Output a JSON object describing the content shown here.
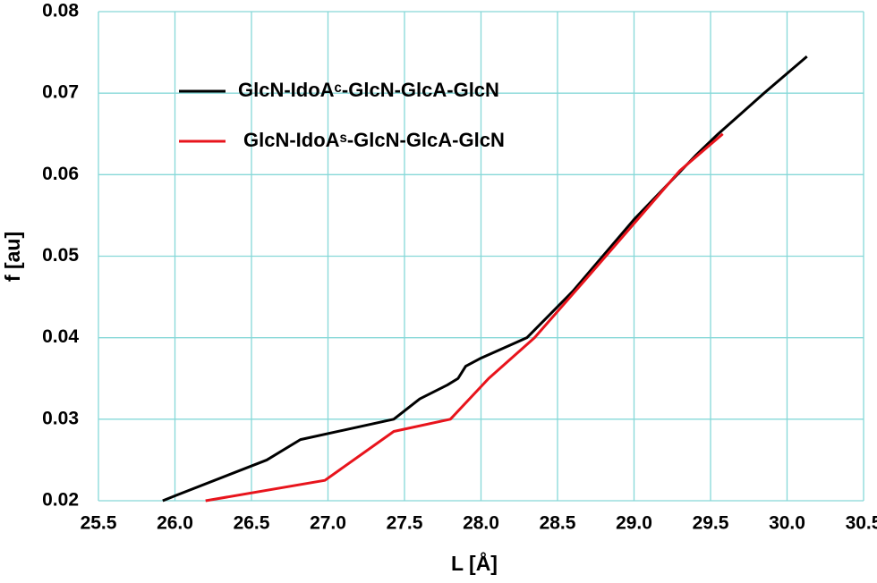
{
  "chart_data": {
    "type": "line",
    "xlabel": "L [Å]",
    "ylabel": "f [au]",
    "xlim": [
      25.5,
      30.5
    ],
    "xticks": [
      25.5,
      {
        "value": 26,
        "label": "26.0"
      },
      26.5,
      {
        "value": 27,
        "label": "27.0"
      },
      27.5,
      {
        "value": 28,
        "label": "28.0"
      },
      28.5,
      {
        "value": 29,
        "label": "29.0"
      },
      29.5,
      {
        "value": 30,
        "label": "30.0"
      },
      30.5
    ],
    "ylim": [
      0.02,
      0.08
    ],
    "yticks": [
      0.02,
      0.03,
      0.04,
      0.05,
      0.06,
      0.07,
      0.08
    ],
    "grid": true,
    "legend": "upper left",
    "series": [
      {
        "name": "GlcN-IdoAᶜ-GlcN-GlcA-GlcN",
        "color": "#000000",
        "x": [
          25.92,
          26.0,
          26.6,
          26.82,
          27.43,
          27.6,
          27.78,
          27.85,
          27.9,
          28.0,
          28.3,
          28.6,
          29.0,
          29.4,
          29.55,
          29.7,
          29.85,
          30.13
        ],
        "values": [
          0.02,
          0.0206,
          0.025,
          0.0275,
          0.03,
          0.0325,
          0.0342,
          0.035,
          0.0365,
          0.0375,
          0.04,
          0.0457,
          0.0545,
          0.0623,
          0.065,
          0.0675,
          0.07,
          0.0745
        ]
      },
      {
        "name": "GlcN-IdoAˢ-GlcN-GlcA-GlcN",
        "color": "#e8141c",
        "x": [
          26.2,
          26.98,
          27.43,
          27.8,
          28.05,
          28.35,
          28.7,
          29.0,
          29.3,
          29.58
        ],
        "values": [
          0.02,
          0.0225,
          0.0285,
          0.03,
          0.035,
          0.04,
          0.0475,
          0.054,
          0.0605,
          0.065
        ]
      }
    ]
  }
}
